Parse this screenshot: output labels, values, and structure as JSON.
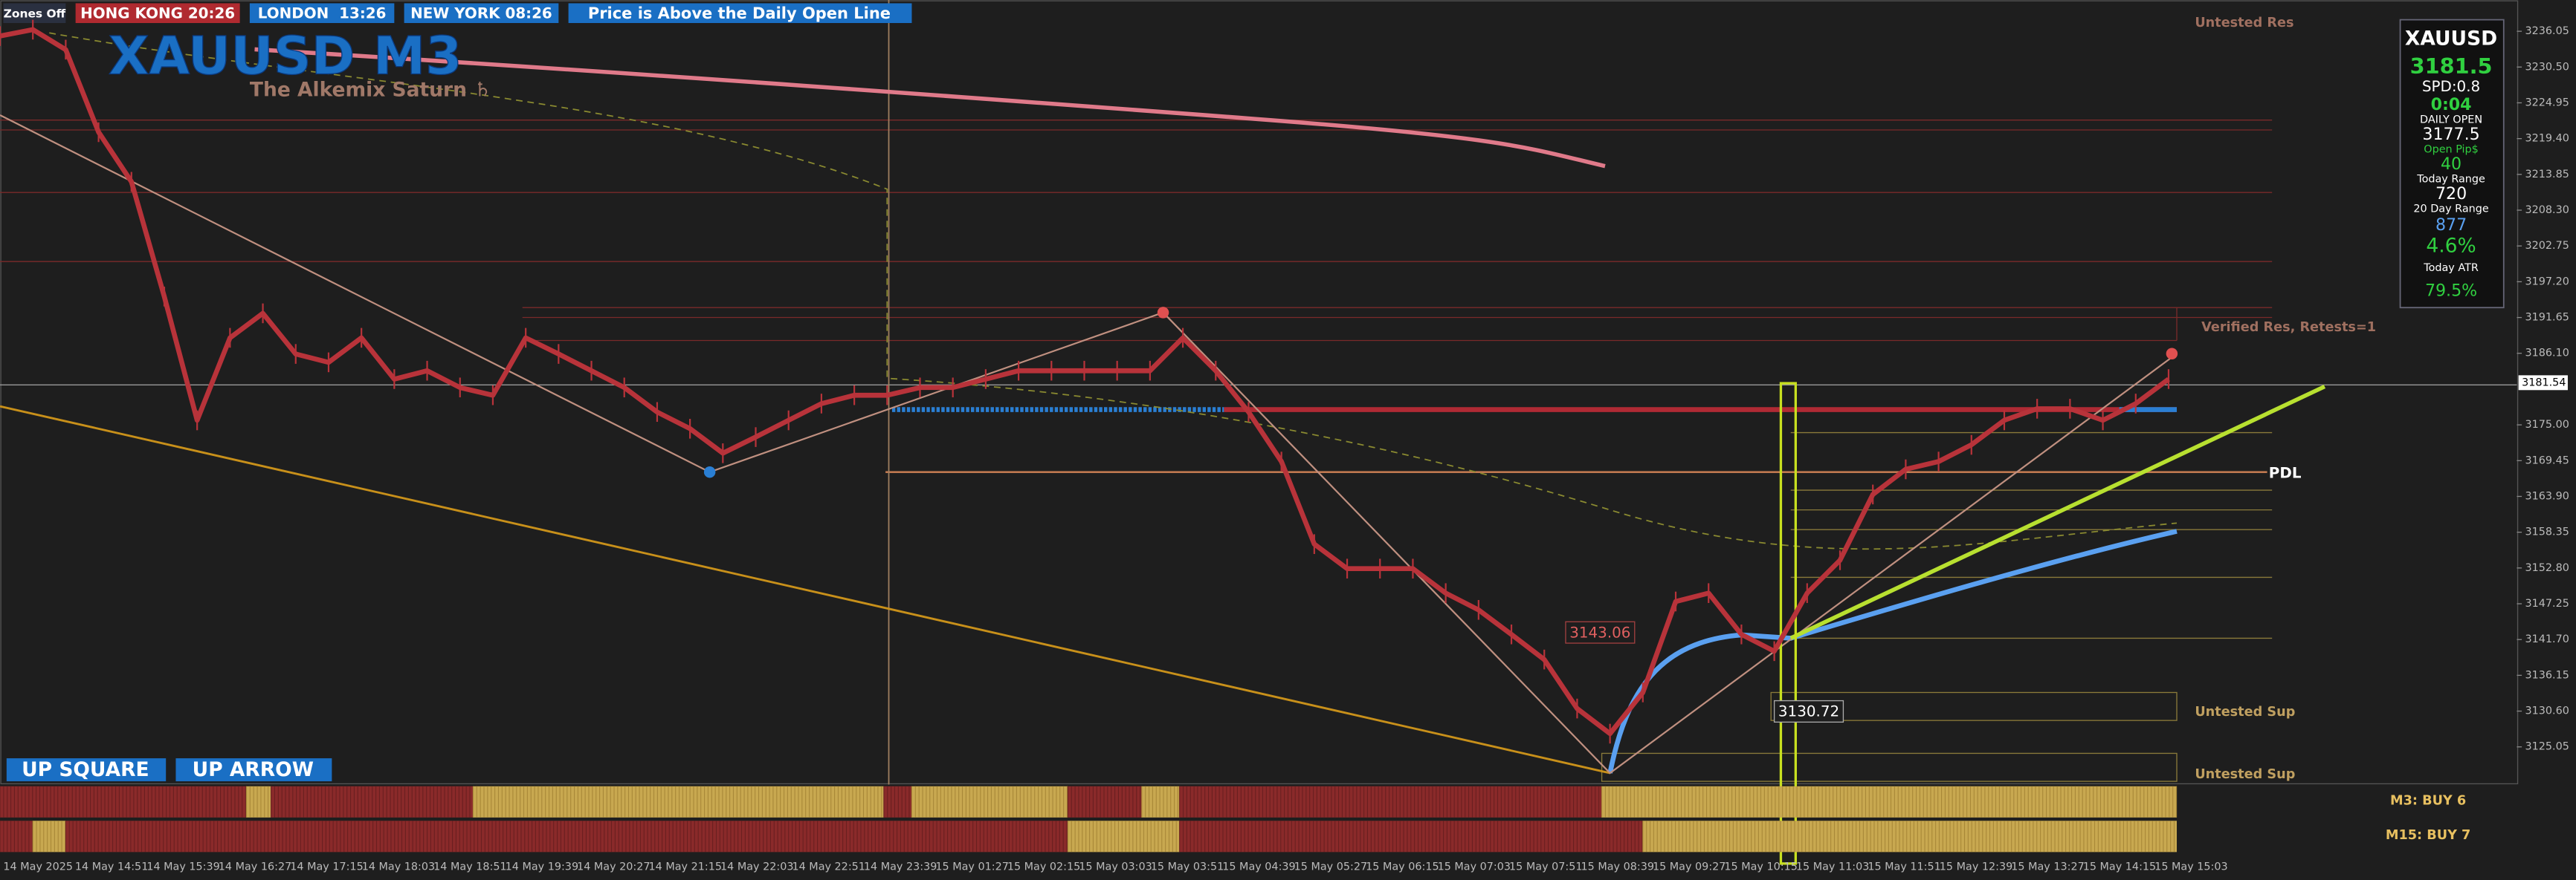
{
  "header": {
    "tabs": [
      "Zones Off",
      "HONG KONG 20:26",
      "LONDON  13:26",
      "NEW YORK 08:26",
      "Price is Above the Daily Open Line"
    ]
  },
  "symbol_title": "XAUUSD M3",
  "subtitle": "The Alkemix Saturn ♄",
  "buttons": [
    "UP SQUARE",
    "UP ARROW"
  ],
  "panel": {
    "symbol": "XAUUSD",
    "price": "3181.5",
    "spread": "SPD:0.8",
    "timer": "0:04",
    "daily_open_label": "DAILY OPEN",
    "daily_open": "3177.5",
    "open_pips_label": "Open Pip$",
    "open_pips": "40",
    "today_range_label": "Today Range",
    "today_range": "720",
    "range20_label": "20 Day Range",
    "range20": "877",
    "range_pct": "4.6%",
    "today_atr_label": "Today ATR",
    "today_atr": "79.5%"
  },
  "annotations": {
    "untested_res": "Untested Res",
    "verified_res": "Verified Res, Retests=1",
    "pdl": "PDL",
    "untested_sup_1": "Untested Sup",
    "untested_sup_2": "Untested Sup",
    "price_high": "3143.06",
    "price_low": "3130.72"
  },
  "strength": [
    "M3: BUY 6",
    "M15: BUY 7"
  ],
  "chart_data": {
    "type": "line",
    "color": "#b8333a",
    "values": [
      3235.3,
      3236.3,
      3233.2,
      3220.4,
      3212.7,
      3194.9,
      3175.7,
      3188.5,
      3192.3,
      3186.0,
      3184.7,
      3188.5,
      3182.1,
      3183.4,
      3180.8,
      3179.6,
      3188.5,
      3186.0,
      3183.4,
      3180.8,
      3177.0,
      3174.4,
      3170.6,
      3173.1,
      3175.7,
      3178.3,
      3179.6,
      3179.6,
      3180.8,
      3180.8,
      3182.1,
      3183.4,
      3183.4,
      3183.4,
      3183.4,
      3183.4,
      3188.5,
      3183.4,
      3177.0,
      3169.3,
      3156.5,
      3152.7,
      3152.7,
      3152.7,
      3148.9,
      3146.3,
      3142.5,
      3138.6,
      3131.0,
      3127.1,
      3133.5,
      3147.6,
      3148.9,
      3142.5,
      3139.9,
      3148.9,
      3154.0,
      3164.2,
      3168.1,
      3169.3,
      3171.9,
      3175.7,
      3177.5,
      3177.5,
      3175.7,
      3178.3,
      3182.1
    ],
    "ylim": [
      3119.2,
      3240.9
    ],
    "yticks": [
      3236.05,
      {
        "value": 3230.5,
        "label": "3230.50"
      },
      3224.95,
      {
        "value": 3219.4,
        "label": "3219.40"
      },
      3213.85,
      {
        "value": 3208.3,
        "label": "3208.30"
      },
      3202.75,
      {
        "value": 3197.2,
        "label": "3197.20"
      },
      3191.65,
      {
        "value": 3186.1,
        "label": "3186.10"
      },
      {
        "value": 3175,
        "label": "3175.00"
      },
      3169.45,
      {
        "value": 3163.9,
        "label": "3163.90"
      },
      3158.35,
      {
        "value": 3152.8,
        "label": "3152.80"
      },
      3147.25,
      {
        "value": 3141.7,
        "label": "3141.70"
      },
      3136.15,
      {
        "value": 3130.6,
        "label": "3130.60"
      },
      3125.05
    ],
    "current_price": 3181.54,
    "time_labels": [
      "14 May 2025",
      "14 May 14:51",
      "14 May 15:39",
      "14 May 16:27",
      "14 May 17:15",
      "14 May 18:03",
      "14 May 18:51",
      "14 May 19:39",
      "14 May 20:27",
      "14 May 21:15",
      "14 May 22:03",
      "14 May 22:51",
      "14 May 23:39",
      "15 May 01:27",
      "15 May 02:15",
      "15 May 03:03",
      "15 May 03:51",
      "15 May 04:39",
      "15 May 05:27",
      "15 May 06:15",
      "15 May 07:03",
      "15 May 07:51",
      "15 May 08:39",
      "15 May 09:27",
      "15 May 10:15",
      "15 May 11:03",
      "15 May 11:51",
      "15 May 12:39",
      "15 May 13:27",
      "15 May 14:15",
      "15 May 15:03"
    ]
  }
}
